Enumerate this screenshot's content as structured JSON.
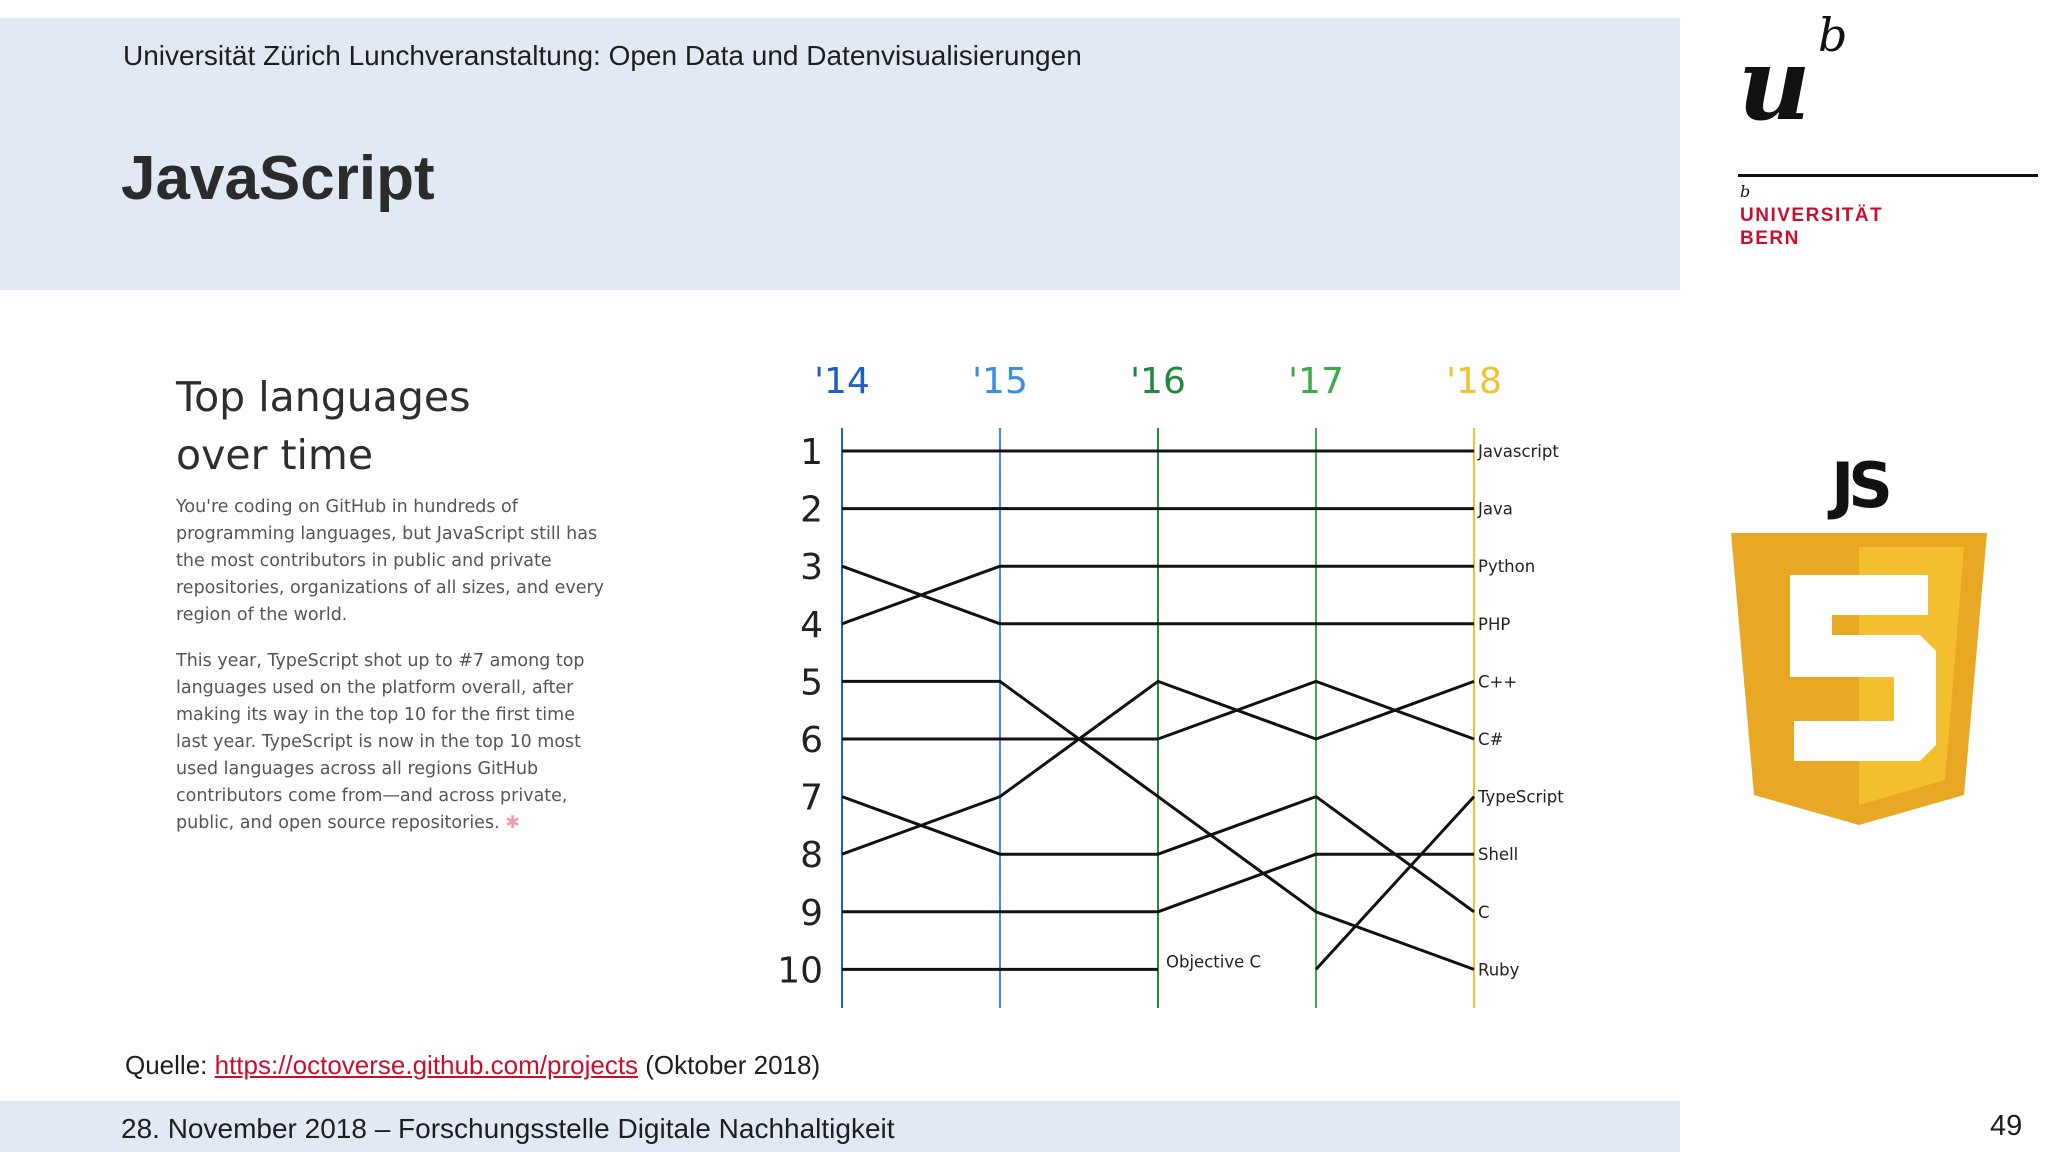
{
  "header": {
    "subtitle": "Universität Zürich Lunchveranstaltung: Open Data und Datenvisualisierungen",
    "title": "JavaScript"
  },
  "logo": {
    "u": "u",
    "b": "b",
    "small_b": "b",
    "name_line1": "UNIVERSITÄT",
    "name_line2": "BERN",
    "accent_color": "#c8102e"
  },
  "badge": {
    "text": "JS",
    "numeral": "5",
    "colors": {
      "outer": "#e9a823",
      "inner": "#f4bf2f",
      "text": "#111111"
    }
  },
  "octoverse": {
    "heading_line1": "Top languages",
    "heading_line2": "over time",
    "para1": "You're coding on GitHub in hundreds of programming languages, but JavaScript still has the most contributors in public and private repositories, organizations of all sizes, and every region of the world.",
    "para2": "This year, TypeScript shot up to #7 among top languages used on the platform overall, after making its way in the top 10 for the first time last year. TypeScript is now in the top 10 most used languages across all regions GitHub contributors come from—and across private, public, and open source repositories.",
    "asterisk": "✱"
  },
  "chart_data": {
    "type": "line",
    "title": "Top languages over time",
    "x": [
      "'14",
      "'15",
      "'16",
      "'17",
      "'18"
    ],
    "year_colors": [
      "#1f5fbf",
      "#3b8fe0",
      "#1f8a3c",
      "#3cab48",
      "#f2c12e"
    ],
    "ranks": [
      "1",
      "2",
      "3",
      "4",
      "5",
      "6",
      "7",
      "8",
      "9",
      "10"
    ],
    "y_reversed": true,
    "ylim": [
      1,
      10
    ],
    "series": [
      {
        "name": "Javascript",
        "values": [
          1,
          1,
          1,
          1,
          1
        ]
      },
      {
        "name": "Java",
        "values": [
          2,
          2,
          2,
          2,
          2
        ]
      },
      {
        "name": "Python",
        "values": [
          4,
          3,
          3,
          3,
          3
        ]
      },
      {
        "name": "PHP",
        "values": [
          3,
          4,
          4,
          4,
          4
        ]
      },
      {
        "name": "C++",
        "values": [
          8,
          7,
          5,
          6,
          5
        ]
      },
      {
        "name": "C#",
        "values": [
          6,
          6,
          6,
          5,
          6
        ]
      },
      {
        "name": "TypeScript",
        "values": [
          null,
          null,
          null,
          10,
          7
        ]
      },
      {
        "name": "Shell",
        "values": [
          9,
          9,
          9,
          8,
          8
        ]
      },
      {
        "name": "C",
        "values": [
          7,
          8,
          8,
          7,
          9
        ]
      },
      {
        "name": "Ruby",
        "values": [
          5,
          5,
          7,
          9,
          10
        ]
      },
      {
        "name": "Objective C",
        "values": [
          10,
          10,
          10,
          null,
          null
        ]
      }
    ]
  },
  "source": {
    "prefix": "Quelle: ",
    "link": "https://octoverse.github.com/projects",
    "suffix": " (Oktober 2018)"
  },
  "footer": {
    "text": "28. November 2018 – Forschungsstelle Digitale Nachhaltigkeit",
    "page_number": "49"
  }
}
